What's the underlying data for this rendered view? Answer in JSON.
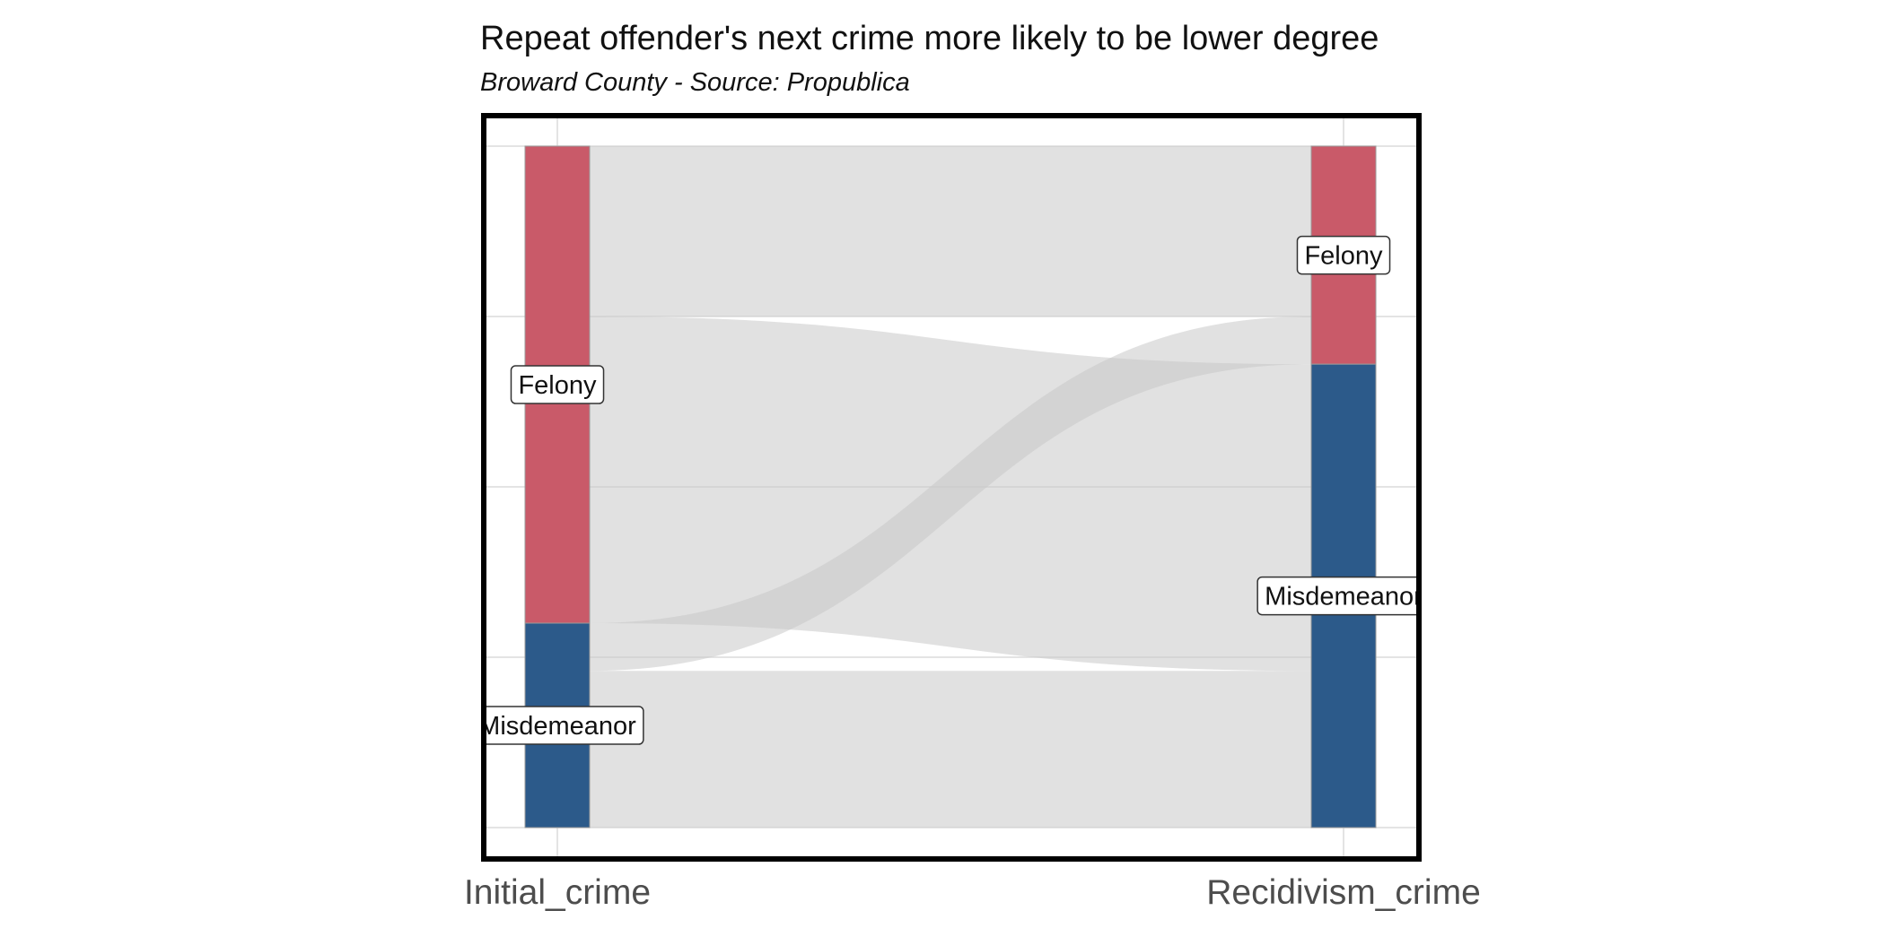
{
  "chart_data": {
    "type": "alluvial",
    "title": "Repeat offender's next crime more likely to be lower degree",
    "subtitle": "Broward County - Source: Propublica",
    "axes": [
      "Initial_crime",
      "Recidivism_crime"
    ],
    "strata": [
      "Felony",
      "Misdemeanor"
    ],
    "strata_colors": {
      "Felony": "#c95a69",
      "Misdemeanor": "#2c5a8a"
    },
    "flow_color": "#e0e0e0",
    "flows": [
      {
        "from": "Felony",
        "to": "Felony",
        "value": 25
      },
      {
        "from": "Felony",
        "to": "Misdemeanor",
        "value": 45
      },
      {
        "from": "Misdemeanor",
        "to": "Felony",
        "value": 7
      },
      {
        "from": "Misdemeanor",
        "to": "Misdemeanor",
        "value": 23
      }
    ],
    "totals": {
      "Initial_crime": {
        "Felony": 70,
        "Misdemeanor": 30
      },
      "Recidivism_crime": {
        "Felony": 32,
        "Misdemeanor": 68
      }
    },
    "grid": true
  }
}
